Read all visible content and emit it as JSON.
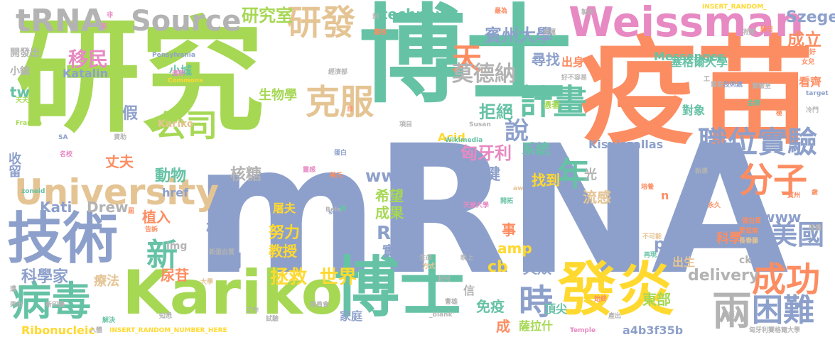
{
  "words": [
    {
      "text": "mRNA",
      "color": "#8da0cb"
    },
    {
      "text": "研究",
      "color": "#a6d854"
    },
    {
      "text": "博士",
      "color": "#66c2a5"
    },
    {
      "text": "疫苗",
      "color": "#fc8d62"
    },
    {
      "text": "Kariko",
      "color": "#a6d854"
    },
    {
      "text": "博士",
      "color": "#66c2a5"
    },
    {
      "text": "技術",
      "color": "#8da0cb"
    },
    {
      "text": "發炎",
      "color": "#ffd92f"
    },
    {
      "text": "Weissman",
      "color": "#e78ac3"
    },
    {
      "text": "University",
      "color": "#e5c494"
    },
    {
      "text": "tRNA",
      "color": "#b3b3b3"
    },
    {
      "text": "Source",
      "color": "#b3b3b3"
    },
    {
      "text": "研發",
      "color": "#e5c494"
    },
    {
      "text": "病毒",
      "color": "#66c2a5"
    },
    {
      "text": "成功",
      "color": "#fc8d62"
    },
    {
      "text": "兩",
      "color": "#b3b3b3"
    },
    {
      "text": "困難",
      "color": "#8da0cb"
    },
    {
      "text": "克服",
      "color": "#e5c494"
    },
    {
      "text": "公司",
      "color": "#a6d854"
    },
    {
      "text": "計畫",
      "color": "#66c2a5"
    },
    {
      "text": "職位",
      "color": "#8da0cb"
    },
    {
      "text": "實驗",
      "color": "#8da0cb"
    },
    {
      "text": "分子",
      "color": "#fc8d62"
    },
    {
      "text": "時",
      "color": "#8da0cb"
    },
    {
      "text": "天",
      "color": "#fc8d62"
    },
    {
      "text": "美國",
      "color": "#8da0cb"
    },
    {
      "text": "年",
      "color": "#66c2a5"
    },
    {
      "text": "新",
      "color": "#66c2a5"
    },
    {
      "text": "說",
      "color": "#8da0cb"
    },
    {
      "text": "研究室",
      "color": "#a6d854"
    },
    {
      "text": "Szeged",
      "color": "#8da0cb"
    },
    {
      "text": "technews",
      "color": "#66c2a5"
    },
    {
      "text": "賓州大學",
      "color": "#8da0cb"
    },
    {
      "text": "成立",
      "color": "#fc8d62"
    },
    {
      "text": "移民",
      "color": "#e78ac3"
    },
    {
      "text": "莫德納",
      "color": "#b3b3b3"
    },
    {
      "text": "匈牙利",
      "color": "#e78ac3"
    },
    {
      "text": "www5",
      "color": "#8da0cb"
    },
    {
      "text": "Messenger",
      "color": "#66c2a5"
    },
    {
      "text": "塞格爾大學",
      "color": "#66c2a5"
    },
    {
      "text": "世界",
      "color": "#ffd92f"
    },
    {
      "text": "拯救",
      "color": "#ffd92f"
    },
    {
      "text": "delivery",
      "color": "#b3b3b3"
    },
    {
      "text": "科學家",
      "color": "#8da0cb"
    },
    {
      "text": "RNA",
      "color": "#8da0cb"
    },
    {
      "text": "amp",
      "color": "#ffd92f"
    },
    {
      "text": "php",
      "color": "#8da0cb"
    },
    {
      "text": "Kati",
      "color": "#8da0cb"
    },
    {
      "text": "Drew",
      "color": "#b3b3b3"
    },
    {
      "text": "Katalin",
      "color": "#8da0cb"
    },
    {
      "text": "Ribonucleic",
      "color": "#ffd92f"
    },
    {
      "text": "a4b3f35b",
      "color": "#8da0cb"
    },
    {
      "text": "Kisujszallas",
      "color": "#8da0cb"
    },
    {
      "text": "href",
      "color": "#8da0cb"
    },
    {
      "text": "www",
      "color": "#8da0cb"
    },
    {
      "text": "cb",
      "color": "#ffd92f"
    },
    {
      "text": "ck",
      "color": "#b3b3b3"
    },
    {
      "text": "tw",
      "color": "#66c2a5"
    },
    {
      "text": "img",
      "color": "#b3b3b3"
    },
    {
      "text": "Acid",
      "color": "#ffd92f"
    },
    {
      "text": "Kariko",
      "color": "#e5c494"
    },
    {
      "text": "Pensylvania",
      "color": "#8da0cb"
    },
    {
      "text": "INSERT_RANDOM_NUMBER_HERE",
      "color": "#ffd92f"
    },
    {
      "text": "Francia",
      "color": "#a6d854"
    },
    {
      "text": "Wikimedia",
      "color": "#66c2a5"
    },
    {
      "text": "Susan",
      "color": "#b3b3b3"
    },
    {
      "text": "Commons",
      "color": "#ffd92f"
    },
    {
      "text": "Temple",
      "color": "#e78ac3"
    },
    {
      "text": "zoneid",
      "color": "#66c2a5"
    },
    {
      "text": "Bela",
      "color": "#b3b3b3"
    },
    {
      "text": "target",
      "color": "#8da0cb"
    },
    {
      "text": "_blank'",
      "color": "#b3b3b3"
    },
    {
      "text": "INSERT_RANDOM_",
      "color": "#ffd92f"
    },
    {
      "text": "收留",
      "color": "#8da0cb"
    },
    {
      "text": "丈夫",
      "color": "#fc8d62"
    },
    {
      "text": "植入",
      "color": "#fc8d62"
    },
    {
      "text": "核酸",
      "color": "#8da0cb"
    },
    {
      "text": "教授",
      "color": "#ffd92f"
    },
    {
      "text": "實在",
      "color": "#8da0cb"
    },
    {
      "text": "失敗",
      "color": "#8da0cb"
    },
    {
      "text": "出生",
      "color": "#e5c494"
    },
    {
      "text": "科學",
      "color": "#fc8d62"
    },
    {
      "text": "希望",
      "color": "#a6d854"
    },
    {
      "text": "成果",
      "color": "#a6d854"
    },
    {
      "text": "找到",
      "color": "#ffd92f"
    },
    {
      "text": "光",
      "color": "#b3b3b3"
    },
    {
      "text": "流感",
      "color": "#e5c494"
    },
    {
      "text": "動物",
      "color": "#66c2a5"
    },
    {
      "text": "核糖",
      "color": "#b3b3b3"
    },
    {
      "text": "拒絕",
      "color": "#66c2a5"
    },
    {
      "text": "關鍵",
      "color": "#8da0cb"
    },
    {
      "text": "系統",
      "color": "#66c2a5"
    },
    {
      "text": "尋找",
      "color": "#8da0cb"
    },
    {
      "text": "出身",
      "color": "#fc8d62"
    },
    {
      "text": "看齊",
      "color": "#fc8d62"
    },
    {
      "text": "對象",
      "color": "#66c2a5"
    },
    {
      "text": "生物學",
      "color": "#a6d854"
    },
    {
      "text": "免疫",
      "color": "#66c2a5"
    },
    {
      "text": "頂尖",
      "color": "#66c2a5"
    },
    {
      "text": "東部",
      "color": "#a6d854"
    },
    {
      "text": "家庭",
      "color": "#8da0cb"
    },
    {
      "text": "薩拉什",
      "color": "#a6d854"
    },
    {
      "text": "開發出",
      "color": "#b3b3b3"
    },
    {
      "text": "小鎮",
      "color": "#b3b3b3"
    },
    {
      "text": "小城",
      "color": "#66c2a5"
    },
    {
      "text": "假",
      "color": "#8da0cb"
    },
    {
      "text": "療法",
      "color": "#e5c494"
    },
    {
      "text": "尿苷",
      "color": "#fc8d62"
    },
    {
      "text": "剛",
      "color": "#8da0cb"
    },
    {
      "text": "努力",
      "color": "#ffd92f"
    },
    {
      "text": "沒",
      "color": "#8da0cb"
    },
    {
      "text": "事",
      "color": "#fc8d62"
    },
    {
      "text": "成",
      "color": "#fc8d62"
    },
    {
      "text": "屠夫",
      "color": "#ffd92f"
    },
    {
      "text": "n",
      "color": "#fc8d62"
    },
    {
      "text": "a",
      "color": "#66c2a5"
    },
    {
      "text": "src",
      "color": "#8da0cb"
    },
    {
      "text": "aw",
      "color": "#e5c494"
    },
    {
      "text": "憑著",
      "color": "#a6d854"
    },
    {
      "text": "實驗室",
      "color": "#b3b3b3"
    },
    {
      "text": "技術處",
      "color": "#8da0cb"
    },
    {
      "text": "金牌",
      "color": "#66c2a5"
    },
    {
      "text": "執導",
      "color": "#b3b3b3"
    },
    {
      "text": "匈牙利賽格爾大學",
      "color": "#b3b3b3"
    },
    {
      "text": "名校",
      "color": "#e78ac3"
    },
    {
      "text": "告訴",
      "color": "#fc8d62"
    },
    {
      "text": "知悉",
      "color": "#b3b3b3"
    },
    {
      "text": "賓州",
      "color": "#fc8d62"
    },
    {
      "text": "蛋白質",
      "color": "#fc8d62"
    },
    {
      "text": "愛滋病",
      "color": "#fc8d62"
    },
    {
      "text": "長春藤",
      "color": "#e5c494"
    },
    {
      "text": "再現",
      "color": "#66c2a5"
    },
    {
      "text": "不可能",
      "color": "#e5c494"
    },
    {
      "text": "原體",
      "color": "#b3b3b3"
    },
    {
      "text": "天普大學",
      "color": "#e78ac3"
    },
    {
      "text": "開拓",
      "color": "#66c2a5"
    },
    {
      "text": "新蛋白質",
      "color": "#b3b3b3"
    },
    {
      "text": "生命",
      "color": "#b3b3b3"
    },
    {
      "text": "晚上",
      "color": "#b3b3b3"
    },
    {
      "text": "方式",
      "color": "#e5c494"
    },
    {
      "text": "封付",
      "color": "#b3b3b3"
    },
    {
      "text": "曹雄",
      "color": "#b3b3b3"
    },
    {
      "text": "始終",
      "color": "#fc8d62"
    },
    {
      "text": "產出",
      "color": "#b3b3b3"
    },
    {
      "text": "傷痕",
      "color": "#b3b3b3"
    },
    {
      "text": "委員會",
      "color": "#b3b3b3"
    },
    {
      "text": "解決",
      "color": "#66c2a5"
    },
    {
      "text": "入體",
      "color": "#b3b3b3"
    },
    {
      "text": "新印機",
      "color": "#b3b3b3"
    },
    {
      "text": "弄出",
      "color": "#b3b3b3"
    },
    {
      "text": "遭",
      "color": "#b3b3b3"
    },
    {
      "text": "大學",
      "color": "#e5c494"
    },
    {
      "text": "天天",
      "color": "#a6d854"
    },
    {
      "text": "SA",
      "color": "#8da0cb"
    },
    {
      "text": "工作",
      "color": "#b3b3b3"
    },
    {
      "text": "試驗",
      "color": "#b3b3b3"
    },
    {
      "text": "經濟部",
      "color": "#b3b3b3"
    },
    {
      "text": "項目",
      "color": "#b3b3b3"
    },
    {
      "text": "蛋白",
      "color": "#8da0cb"
    },
    {
      "text": "信",
      "color": "#b3b3b3"
    },
    {
      "text": "美元",
      "color": "#fc8d62"
    },
    {
      "text": "靈感",
      "color": "#e78ac3"
    },
    {
      "text": "培養",
      "color": "#fc8d62"
    },
    {
      "text": "永久",
      "color": "#fc8d62"
    },
    {
      "text": "冷門",
      "color": "#b3b3b3"
    },
    {
      "text": "好不容易",
      "color": "#b3b3b3"
    },
    {
      "text": "透明",
      "color": "#e78ac3"
    },
    {
      "text": "最為",
      "color": "#fc8d62"
    },
    {
      "text": "審核",
      "color": "#fc8d62"
    },
    {
      "text": "奧運",
      "color": "#b3b3b3"
    },
    {
      "text": "消費",
      "color": "#b3b3b3"
    },
    {
      "text": "歸日",
      "color": "#fc8d62"
    },
    {
      "text": "看好",
      "color": "#fc8d62"
    },
    {
      "text": "女兒",
      "color": "#fc8d62"
    },
    {
      "text": "重要",
      "color": "#b3b3b3"
    },
    {
      "text": "製作",
      "color": "#b3b3b3"
    },
    {
      "text": "資助",
      "color": "#b3b3b3"
    },
    {
      "text": "刻",
      "color": "#b3b3b3"
    },
    {
      "text": "笑",
      "color": "#e78ac3"
    },
    {
      "text": "非",
      "color": "#e78ac3"
    },
    {
      "text": "自",
      "color": "#fc8d62"
    },
    {
      "text": "歲",
      "color": "#fc8d62"
    },
    {
      "text": "極",
      "color": "#fc8d62"
    },
    {
      "text": "屆",
      "color": "#fc8d62"
    },
    {
      "text": "工",
      "color": "#b3b3b3"
    }
  ]
}
